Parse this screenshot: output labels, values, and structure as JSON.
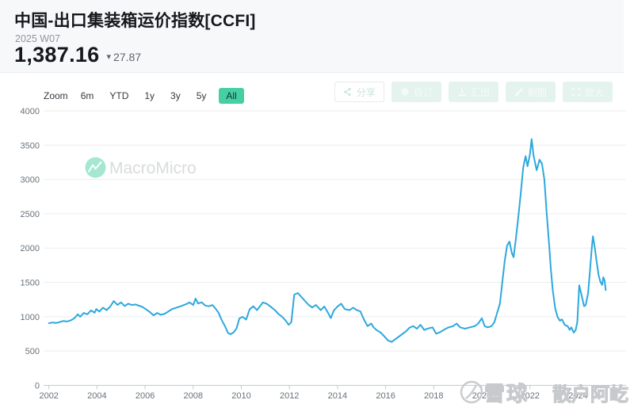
{
  "header": {
    "title": "中国-出口集装箱运价指数[CCFI]",
    "period": "2025 W07",
    "value": "1,387.16",
    "change": "27.87",
    "change_direction": "down",
    "down_triangle": "▾"
  },
  "toolbar": {
    "zoom_label": "Zoom",
    "ranges": [
      {
        "label": "6m",
        "active": false
      },
      {
        "label": "YTD",
        "active": false
      },
      {
        "label": "1y",
        "active": false
      },
      {
        "label": "3y",
        "active": false
      },
      {
        "label": "5y",
        "active": false
      },
      {
        "label": "All",
        "active": true
      }
    ],
    "actions": [
      {
        "label": "分享",
        "icon": "share-icon",
        "style": "outline"
      },
      {
        "label": "自订",
        "icon": "gear-icon",
        "style": "filled"
      },
      {
        "label": "汇出",
        "icon": "download-icon",
        "style": "filled"
      },
      {
        "label": "制图",
        "icon": "pencil-icon",
        "style": "filled"
      },
      {
        "label": "放大",
        "icon": "expand-icon",
        "style": "filled"
      }
    ]
  },
  "watermarks": {
    "macromicro_text": "MacroMicro",
    "xueqiu_logo_text": "雪球",
    "xueqiu_user_text": "散户阿屹"
  },
  "colors": {
    "line_blue": "#2da8dd",
    "accent_teal": "#45cfa4",
    "down_red": "#f0584a",
    "grid": "#eceeef",
    "axis": "#c6cacd",
    "axis_label": "#68727b",
    "watermark_gray": "#d9dbdd",
    "watermark_mint": "#a5e7d1"
  },
  "chart_data": {
    "type": "line",
    "title": "中国-出口集装箱运价指数[CCFI]",
    "xlabel": "",
    "ylabel": "",
    "ylim": [
      0,
      4000
    ],
    "y_ticks": [
      0,
      500,
      1000,
      1500,
      2000,
      2500,
      3000,
      3500,
      4000
    ],
    "x_ticks": [
      2002,
      2004,
      2006,
      2008,
      2010,
      2012,
      2014,
      2016,
      2018,
      2020,
      2022,
      2024
    ],
    "grid": true,
    "legend_position": "none",
    "series": [
      {
        "name": "CCFI",
        "color": "#2da8dd",
        "points": [
          [
            2002.0,
            905
          ],
          [
            2002.15,
            915
          ],
          [
            2002.3,
            908
          ],
          [
            2002.45,
            922
          ],
          [
            2002.6,
            938
          ],
          [
            2002.75,
            930
          ],
          [
            2002.9,
            945
          ],
          [
            2003.05,
            975
          ],
          [
            2003.2,
            1035
          ],
          [
            2003.3,
            1000
          ],
          [
            2003.45,
            1055
          ],
          [
            2003.6,
            1035
          ],
          [
            2003.75,
            1092
          ],
          [
            2003.9,
            1058
          ],
          [
            2003.97,
            1112
          ],
          [
            2004.1,
            1075
          ],
          [
            2004.25,
            1132
          ],
          [
            2004.4,
            1095
          ],
          [
            2004.55,
            1148
          ],
          [
            2004.7,
            1228
          ],
          [
            2004.85,
            1172
          ],
          [
            2005.0,
            1208
          ],
          [
            2005.15,
            1155
          ],
          [
            2005.3,
            1190
          ],
          [
            2005.45,
            1170
          ],
          [
            2005.6,
            1178
          ],
          [
            2005.75,
            1160
          ],
          [
            2005.9,
            1140
          ],
          [
            2006.05,
            1105
          ],
          [
            2006.2,
            1068
          ],
          [
            2006.35,
            1020
          ],
          [
            2006.5,
            1055
          ],
          [
            2006.65,
            1028
          ],
          [
            2006.8,
            1040
          ],
          [
            2006.95,
            1072
          ],
          [
            2007.1,
            1108
          ],
          [
            2007.3,
            1132
          ],
          [
            2007.5,
            1155
          ],
          [
            2007.7,
            1182
          ],
          [
            2007.85,
            1208
          ],
          [
            2008.0,
            1170
          ],
          [
            2008.1,
            1265
          ],
          [
            2008.2,
            1192
          ],
          [
            2008.35,
            1210
          ],
          [
            2008.5,
            1162
          ],
          [
            2008.65,
            1152
          ],
          [
            2008.8,
            1170
          ],
          [
            2008.92,
            1122
          ],
          [
            2009.05,
            1060
          ],
          [
            2009.18,
            955
          ],
          [
            2009.32,
            862
          ],
          [
            2009.45,
            762
          ],
          [
            2009.55,
            745
          ],
          [
            2009.68,
            772
          ],
          [
            2009.8,
            828
          ],
          [
            2009.92,
            975
          ],
          [
            2010.05,
            998
          ],
          [
            2010.2,
            958
          ],
          [
            2010.35,
            1110
          ],
          [
            2010.5,
            1152
          ],
          [
            2010.65,
            1095
          ],
          [
            2010.8,
            1165
          ],
          [
            2010.9,
            1208
          ],
          [
            2011.05,
            1190
          ],
          [
            2011.2,
            1152
          ],
          [
            2011.4,
            1095
          ],
          [
            2011.55,
            1038
          ],
          [
            2011.7,
            998
          ],
          [
            2011.85,
            942
          ],
          [
            2011.97,
            882
          ],
          [
            2012.08,
            920
          ],
          [
            2012.2,
            1322
          ],
          [
            2012.35,
            1345
          ],
          [
            2012.5,
            1288
          ],
          [
            2012.65,
            1228
          ],
          [
            2012.8,
            1172
          ],
          [
            2012.95,
            1135
          ],
          [
            2013.1,
            1170
          ],
          [
            2013.3,
            1095
          ],
          [
            2013.45,
            1150
          ],
          [
            2013.6,
            1058
          ],
          [
            2013.72,
            980
          ],
          [
            2013.85,
            1092
          ],
          [
            2014.0,
            1150
          ],
          [
            2014.15,
            1190
          ],
          [
            2014.3,
            1112
          ],
          [
            2014.5,
            1095
          ],
          [
            2014.65,
            1132
          ],
          [
            2014.8,
            1095
          ],
          [
            2014.95,
            1078
          ],
          [
            2015.1,
            958
          ],
          [
            2015.25,
            862
          ],
          [
            2015.4,
            902
          ],
          [
            2015.5,
            845
          ],
          [
            2015.62,
            806
          ],
          [
            2015.8,
            768
          ],
          [
            2015.95,
            712
          ],
          [
            2016.1,
            655
          ],
          [
            2016.25,
            633
          ],
          [
            2016.4,
            672
          ],
          [
            2016.55,
            710
          ],
          [
            2016.7,
            748
          ],
          [
            2016.85,
            788
          ],
          [
            2017.0,
            842
          ],
          [
            2017.15,
            862
          ],
          [
            2017.3,
            825
          ],
          [
            2017.45,
            882
          ],
          [
            2017.6,
            808
          ],
          [
            2017.8,
            832
          ],
          [
            2017.95,
            845
          ],
          [
            2018.1,
            752
          ],
          [
            2018.25,
            772
          ],
          [
            2018.4,
            805
          ],
          [
            2018.6,
            842
          ],
          [
            2018.8,
            862
          ],
          [
            2018.95,
            900
          ],
          [
            2019.1,
            845
          ],
          [
            2019.3,
            825
          ],
          [
            2019.5,
            845
          ],
          [
            2019.7,
            862
          ],
          [
            2019.85,
            900
          ],
          [
            2020.0,
            978
          ],
          [
            2020.12,
            862
          ],
          [
            2020.25,
            845
          ],
          [
            2020.4,
            862
          ],
          [
            2020.52,
            920
          ],
          [
            2020.62,
            1038
          ],
          [
            2020.75,
            1190
          ],
          [
            2020.85,
            1498
          ],
          [
            2020.95,
            1808
          ],
          [
            2021.05,
            2038
          ],
          [
            2021.15,
            2095
          ],
          [
            2021.25,
            1925
          ],
          [
            2021.32,
            1868
          ],
          [
            2021.42,
            2152
          ],
          [
            2021.52,
            2462
          ],
          [
            2021.62,
            2808
          ],
          [
            2021.72,
            3172
          ],
          [
            2021.82,
            3340
          ],
          [
            2021.9,
            3192
          ],
          [
            2022.0,
            3368
          ],
          [
            2022.07,
            3588
          ],
          [
            2022.15,
            3345
          ],
          [
            2022.28,
            3135
          ],
          [
            2022.4,
            3288
          ],
          [
            2022.5,
            3230
          ],
          [
            2022.6,
            3000
          ],
          [
            2022.7,
            2498
          ],
          [
            2022.8,
            2038
          ],
          [
            2022.87,
            1690
          ],
          [
            2022.95,
            1385
          ],
          [
            2023.05,
            1120
          ],
          [
            2023.15,
            995
          ],
          [
            2023.25,
            942
          ],
          [
            2023.33,
            962
          ],
          [
            2023.45,
            880
          ],
          [
            2023.57,
            862
          ],
          [
            2023.65,
            808
          ],
          [
            2023.72,
            845
          ],
          [
            2023.82,
            768
          ],
          [
            2023.9,
            808
          ],
          [
            2023.97,
            925
          ],
          [
            2024.05,
            1458
          ],
          [
            2024.15,
            1305
          ],
          [
            2024.25,
            1152
          ],
          [
            2024.32,
            1172
          ],
          [
            2024.42,
            1345
          ],
          [
            2024.5,
            1692
          ],
          [
            2024.57,
            2000
          ],
          [
            2024.62,
            2172
          ],
          [
            2024.7,
            1998
          ],
          [
            2024.77,
            1808
          ],
          [
            2024.85,
            1615
          ],
          [
            2024.92,
            1518
          ],
          [
            2025.0,
            1462
          ],
          [
            2025.05,
            1575
          ],
          [
            2025.1,
            1535
          ],
          [
            2025.15,
            1387
          ]
        ]
      }
    ]
  }
}
